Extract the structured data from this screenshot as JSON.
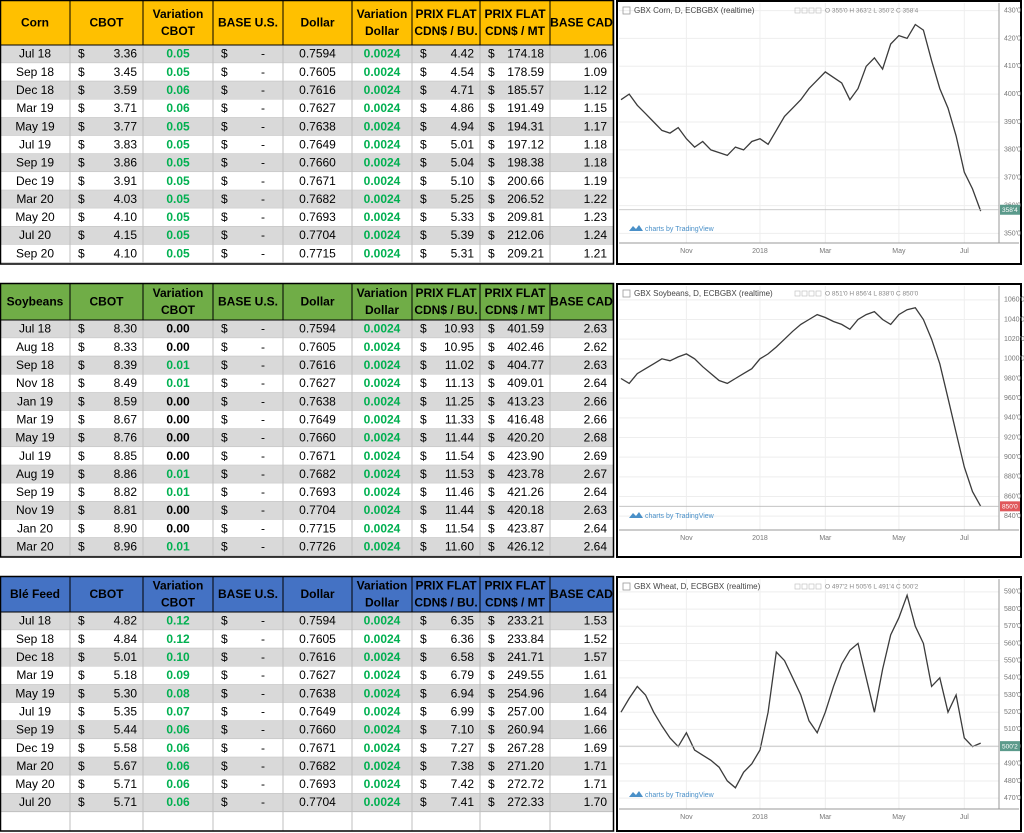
{
  "tables": [
    {
      "header": [
        [
          "Corn"
        ],
        [
          "CBOT"
        ],
        [
          "Variation",
          "CBOT"
        ],
        [
          "BASE U.S."
        ],
        [
          "Dollar"
        ],
        [
          "Variation",
          "Dollar"
        ],
        [
          "PRIX FLAT",
          "CDN$ / BU."
        ],
        [
          "PRIX FLAT",
          "CDN$ / MT"
        ],
        [
          "BASE CAD"
        ]
      ],
      "header_color": "#ffc000",
      "currency": "$",
      "rows": [
        [
          "Jul 18",
          "3.36",
          "0.05",
          "-",
          "0.7594",
          "0.0024",
          "4.42",
          "174.18",
          "1.06"
        ],
        [
          "Sep 18",
          "3.45",
          "0.05",
          "-",
          "0.7605",
          "0.0024",
          "4.54",
          "178.59",
          "1.09"
        ],
        [
          "Dec 18",
          "3.59",
          "0.06",
          "-",
          "0.7616",
          "0.0024",
          "4.71",
          "185.57",
          "1.12"
        ],
        [
          "Mar 19",
          "3.71",
          "0.06",
          "-",
          "0.7627",
          "0.0024",
          "4.86",
          "191.49",
          "1.15"
        ],
        [
          "May 19",
          "3.77",
          "0.05",
          "-",
          "0.7638",
          "0.0024",
          "4.94",
          "194.31",
          "1.17"
        ],
        [
          "Jul 19",
          "3.83",
          "0.05",
          "-",
          "0.7649",
          "0.0024",
          "5.01",
          "197.12",
          "1.18"
        ],
        [
          "Sep 19",
          "3.86",
          "0.05",
          "-",
          "0.7660",
          "0.0024",
          "5.04",
          "198.38",
          "1.18"
        ],
        [
          "Dec 19",
          "3.91",
          "0.05",
          "-",
          "0.7671",
          "0.0024",
          "5.10",
          "200.66",
          "1.19"
        ],
        [
          "Mar 20",
          "4.03",
          "0.05",
          "-",
          "0.7682",
          "0.0024",
          "5.25",
          "206.52",
          "1.22"
        ],
        [
          "May 20",
          "4.10",
          "0.05",
          "-",
          "0.7693",
          "0.0024",
          "5.33",
          "209.81",
          "1.23"
        ],
        [
          "Jul 20",
          "4.15",
          "0.05",
          "-",
          "0.7704",
          "0.0024",
          "5.39",
          "212.06",
          "1.24"
        ],
        [
          "Sep 20",
          "4.10",
          "0.05",
          "-",
          "0.7715",
          "0.0024",
          "5.31",
          "209.21",
          "1.21"
        ]
      ]
    },
    {
      "header": [
        [
          "Soybeans"
        ],
        [
          "CBOT"
        ],
        [
          "Variation",
          "CBOT"
        ],
        [
          "BASE U.S."
        ],
        [
          "Dollar"
        ],
        [
          "Variation",
          "Dollar"
        ],
        [
          "PRIX FLAT",
          "CDN$ / BU."
        ],
        [
          "PRIX FLAT",
          "CDN$ / MT"
        ],
        [
          "BASE CAD"
        ]
      ],
      "header_color": "#70ad47",
      "currency": "$",
      "rows": [
        [
          "Jul 18",
          "8.30",
          "0.00",
          "-",
          "0.7594",
          "0.0024",
          "10.93",
          "401.59",
          "2.63"
        ],
        [
          "Aug 18",
          "8.33",
          "0.00",
          "-",
          "0.7605",
          "0.0024",
          "10.95",
          "402.46",
          "2.62"
        ],
        [
          "Sep 18",
          "8.39",
          "0.01",
          "-",
          "0.7616",
          "0.0024",
          "11.02",
          "404.77",
          "2.63"
        ],
        [
          "Nov 18",
          "8.49",
          "0.01",
          "-",
          "0.7627",
          "0.0024",
          "11.13",
          "409.01",
          "2.64"
        ],
        [
          "Jan 19",
          "8.59",
          "0.00",
          "-",
          "0.7638",
          "0.0024",
          "11.25",
          "413.23",
          "2.66"
        ],
        [
          "Mar 19",
          "8.67",
          "0.00",
          "-",
          "0.7649",
          "0.0024",
          "11.33",
          "416.48",
          "2.66"
        ],
        [
          "May 19",
          "8.76",
          "0.00",
          "-",
          "0.7660",
          "0.0024",
          "11.44",
          "420.20",
          "2.68"
        ],
        [
          "Jul 19",
          "8.85",
          "0.00",
          "-",
          "0.7671",
          "0.0024",
          "11.54",
          "423.90",
          "2.69"
        ],
        [
          "Aug 19",
          "8.86",
          "0.01",
          "-",
          "0.7682",
          "0.0024",
          "11.53",
          "423.78",
          "2.67"
        ],
        [
          "Sep 19",
          "8.82",
          "0.01",
          "-",
          "0.7693",
          "0.0024",
          "11.46",
          "421.26",
          "2.64"
        ],
        [
          "Nov 19",
          "8.81",
          "0.00",
          "-",
          "0.7704",
          "0.0024",
          "11.44",
          "420.18",
          "2.63"
        ],
        [
          "Jan 20",
          "8.90",
          "0.00",
          "-",
          "0.7715",
          "0.0024",
          "11.54",
          "423.87",
          "2.64"
        ],
        [
          "Mar 20",
          "8.96",
          "0.01",
          "-",
          "0.7726",
          "0.0024",
          "11.60",
          "426.12",
          "2.64"
        ]
      ]
    },
    {
      "header": [
        [
          "Blé Feed"
        ],
        [
          "CBOT"
        ],
        [
          "Variation",
          "CBOT"
        ],
        [
          "BASE U.S."
        ],
        [
          "Dollar"
        ],
        [
          "Variation",
          "Dollar"
        ],
        [
          "PRIX FLAT",
          "CDN$ / BU."
        ],
        [
          "PRIX FLAT",
          "CDN$ / MT"
        ],
        [
          "BASE CAD"
        ]
      ],
      "header_color": "#4472c4",
      "currency": "$",
      "rows": [
        [
          "Jul 18",
          "4.82",
          "0.12",
          "-",
          "0.7594",
          "0.0024",
          "6.35",
          "233.21",
          "1.53"
        ],
        [
          "Sep 18",
          "4.84",
          "0.12",
          "-",
          "0.7605",
          "0.0024",
          "6.36",
          "233.84",
          "1.52"
        ],
        [
          "Dec 18",
          "5.01",
          "0.10",
          "-",
          "0.7616",
          "0.0024",
          "6.58",
          "241.71",
          "1.57"
        ],
        [
          "Mar 19",
          "5.18",
          "0.09",
          "-",
          "0.7627",
          "0.0024",
          "6.79",
          "249.55",
          "1.61"
        ],
        [
          "May 19",
          "5.30",
          "0.08",
          "-",
          "0.7638",
          "0.0024",
          "6.94",
          "254.96",
          "1.64"
        ],
        [
          "Jul 19",
          "5.35",
          "0.07",
          "-",
          "0.7649",
          "0.0024",
          "6.99",
          "257.00",
          "1.64"
        ],
        [
          "Sep 19",
          "5.44",
          "0.06",
          "-",
          "0.7660",
          "0.0024",
          "7.10",
          "260.94",
          "1.66"
        ],
        [
          "Dec 19",
          "5.58",
          "0.06",
          "-",
          "0.7671",
          "0.0024",
          "7.27",
          "267.28",
          "1.69"
        ],
        [
          "Mar 20",
          "5.67",
          "0.06",
          "-",
          "0.7682",
          "0.0024",
          "7.38",
          "271.20",
          "1.71"
        ],
        [
          "May 20",
          "5.71",
          "0.06",
          "-",
          "0.7693",
          "0.0024",
          "7.42",
          "272.72",
          "1.71"
        ],
        [
          "Jul 20",
          "5.71",
          "0.06",
          "-",
          "0.7704",
          "0.0024",
          "7.41",
          "272.33",
          "1.70"
        ]
      ]
    }
  ],
  "chart_data": [
    {
      "type": "line",
      "title": "GBX Corn, D, ECBGBX (realtime)",
      "ohlc": "O 355'0 H 363'2 L 350'2 C 358'4",
      "watermark": "charts by TradingView",
      "color": "#3b3b3b",
      "values": [
        398,
        400,
        396,
        393,
        390,
        387,
        386,
        388,
        384,
        381,
        383,
        380,
        379,
        378,
        381,
        380,
        383,
        384,
        382,
        387,
        392,
        395,
        398,
        402,
        405,
        408,
        406,
        404,
        398,
        402,
        410,
        413,
        409,
        418,
        421,
        420,
        425,
        423,
        412,
        402,
        395,
        385,
        372,
        366,
        358
      ],
      "xlim": [
        0,
        46
      ],
      "xticks": [
        {
          "value": 8,
          "label": "Nov"
        },
        {
          "value": 17,
          "label": "2018"
        },
        {
          "value": 25,
          "label": "Mar"
        },
        {
          "value": 34,
          "label": "May"
        },
        {
          "value": 42,
          "label": "Jul"
        }
      ],
      "ylim": [
        348,
        432
      ],
      "yticks": [
        {
          "value": 430,
          "label": "430'0"
        },
        {
          "value": 420,
          "label": "420'0"
        },
        {
          "value": 410,
          "label": "410'0"
        },
        {
          "value": 400,
          "label": "400'0"
        },
        {
          "value": 390,
          "label": "390'0"
        },
        {
          "value": 380,
          "label": "380'0"
        },
        {
          "value": 370,
          "label": "370'0"
        },
        {
          "value": 360,
          "label": "360'0"
        },
        {
          "value": 350,
          "label": "350'0"
        }
      ],
      "last": {
        "value": 358.5,
        "label": "358'4",
        "color": "#5b9a8b"
      },
      "grid": true
    },
    {
      "type": "line",
      "title": "GBX Soybeans, D, ECBGBX (realtime)",
      "ohlc": "O 851'0 H 856'4 L 838'0 C 850'0",
      "watermark": "charts by TradingView",
      "color": "#3b3b3b",
      "values": [
        980,
        975,
        985,
        990,
        995,
        1000,
        998,
        1002,
        1005,
        1000,
        992,
        985,
        978,
        975,
        980,
        985,
        990,
        1000,
        1005,
        1012,
        1020,
        1028,
        1035,
        1040,
        1045,
        1042,
        1038,
        1035,
        1030,
        1040,
        1045,
        1048,
        1040,
        1035,
        1045,
        1050,
        1052,
        1040,
        1020,
        995,
        960,
        925,
        890,
        865,
        850
      ],
      "xlim": [
        0,
        46
      ],
      "xticks": [
        {
          "value": 8,
          "label": "Nov"
        },
        {
          "value": 17,
          "label": "2018"
        },
        {
          "value": 25,
          "label": "Mar"
        },
        {
          "value": 34,
          "label": "May"
        },
        {
          "value": 42,
          "label": "Jul"
        }
      ],
      "ylim": [
        830,
        1070
      ],
      "yticks": [
        {
          "value": 1060,
          "label": "1060'0"
        },
        {
          "value": 1040,
          "label": "1040'0"
        },
        {
          "value": 1020,
          "label": "1020'0"
        },
        {
          "value": 1000,
          "label": "1000'0"
        },
        {
          "value": 980,
          "label": "980'0"
        },
        {
          "value": 960,
          "label": "960'0"
        },
        {
          "value": 940,
          "label": "940'0"
        },
        {
          "value": 920,
          "label": "920'0"
        },
        {
          "value": 900,
          "label": "900'0"
        },
        {
          "value": 880,
          "label": "880'0"
        },
        {
          "value": 860,
          "label": "860'0"
        },
        {
          "value": 840,
          "label": "840'0"
        }
      ],
      "last": {
        "value": 850,
        "label": "850'0",
        "color": "#e0575b"
      },
      "grid": true
    },
    {
      "type": "line",
      "title": "GBX Wheat, D, ECBGBX (realtime)",
      "ohlc": "O 497'2 H 505'6 L 491'4 C 500'2",
      "watermark": "charts by TradingView",
      "color": "#3b3b3b",
      "values": [
        520,
        528,
        535,
        530,
        520,
        512,
        505,
        500,
        508,
        498,
        495,
        492,
        488,
        480,
        476,
        485,
        490,
        498,
        520,
        555,
        550,
        540,
        530,
        515,
        508,
        520,
        535,
        548,
        556,
        560,
        540,
        520,
        545,
        565,
        575,
        588,
        570,
        560,
        535,
        540,
        520,
        530,
        505,
        500,
        502
      ],
      "xlim": [
        0,
        46
      ],
      "xticks": [
        {
          "value": 8,
          "label": "Nov"
        },
        {
          "value": 17,
          "label": "2018"
        },
        {
          "value": 25,
          "label": "Mar"
        },
        {
          "value": 34,
          "label": "May"
        },
        {
          "value": 42,
          "label": "Jul"
        }
      ],
      "ylim": [
        466,
        594
      ],
      "yticks": [
        {
          "value": 590,
          "label": "590'0"
        },
        {
          "value": 580,
          "label": "580'0"
        },
        {
          "value": 570,
          "label": "570'0"
        },
        {
          "value": 560,
          "label": "560'0"
        },
        {
          "value": 550,
          "label": "550'0"
        },
        {
          "value": 540,
          "label": "540'0"
        },
        {
          "value": 530,
          "label": "530'0"
        },
        {
          "value": 520,
          "label": "520'0"
        },
        {
          "value": 510,
          "label": "510'0"
        },
        {
          "value": 500,
          "label": "500'0"
        },
        {
          "value": 490,
          "label": "490'0"
        },
        {
          "value": 480,
          "label": "480'0"
        },
        {
          "value": 470,
          "label": "470'0"
        }
      ],
      "last": {
        "value": 500.25,
        "label": "500'2",
        "color": "#5b9a8b"
      },
      "grid": true
    }
  ]
}
